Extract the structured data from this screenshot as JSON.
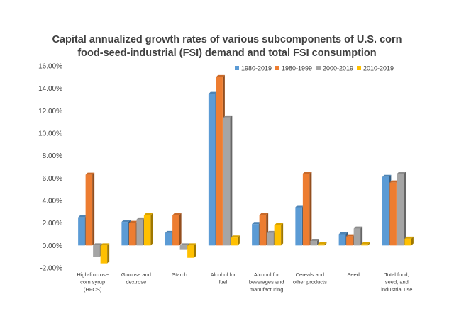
{
  "chart_data": {
    "type": "bar",
    "title": "Capital annualized growth rates of various subcomponents of U.S. corn food-seed-industrial (FSI) demand and total FSI consumption",
    "title_lines": [
      "Capital annualized growth rates of various subcomponents of U.S. corn",
      "food-seed-industrial (FSI) demand and total FSI consumption"
    ],
    "xlabel": "",
    "ylabel": "",
    "ylim": [
      -2,
      16
    ],
    "yticks": [
      -2,
      0,
      2,
      4,
      6,
      8,
      10,
      12,
      14,
      16
    ],
    "ytick_labels": [
      "-2.00%",
      "0.00%",
      "2.00%",
      "4.00%",
      "6.00%",
      "8.00%",
      "10.00%",
      "12.00%",
      "14.00%",
      "16.00%"
    ],
    "grid": false,
    "legend_position": "top-right",
    "categories": [
      "High-fructose corn syrup (HFCS)",
      "Glucose and dextrose",
      "Starch",
      "Alcohol for fuel",
      "Alcohol for beverages and manufacturing",
      "Cereals and other products",
      "Seed",
      "Total food, seed, and industrial use"
    ],
    "category_lines": [
      [
        "High-fructose",
        "corn syrup",
        "(HFCS)"
      ],
      [
        "Glucose and",
        "dextrose"
      ],
      [
        "Starch"
      ],
      [
        "Alcohol for",
        "fuel"
      ],
      [
        "Alcohol for",
        "beverages and",
        "manufacturing"
      ],
      [
        "Cereals and",
        "other products"
      ],
      [
        "Seed"
      ],
      [
        "Total food,",
        "seed, and",
        "industrial use"
      ]
    ],
    "series": [
      {
        "name": "1980-2019",
        "color": "#5B9BD5",
        "values": [
          2.5,
          2.1,
          1.1,
          13.5,
          1.9,
          3.4,
          1.0,
          6.1
        ]
      },
      {
        "name": "1980-1999",
        "color": "#ED7D31",
        "values": [
          6.3,
          2.0,
          2.7,
          15.0,
          2.7,
          6.4,
          0.8,
          5.6
        ]
      },
      {
        "name": "2000-2019",
        "color": "#A5A5A5",
        "values": [
          -1.0,
          2.3,
          -0.4,
          11.4,
          1.1,
          0.4,
          1.5,
          6.4
        ]
      },
      {
        "name": "2010-2019",
        "color": "#FFC000",
        "values": [
          -1.6,
          2.7,
          -1.1,
          0.7,
          1.8,
          0.1,
          0.1,
          0.6
        ]
      }
    ]
  }
}
